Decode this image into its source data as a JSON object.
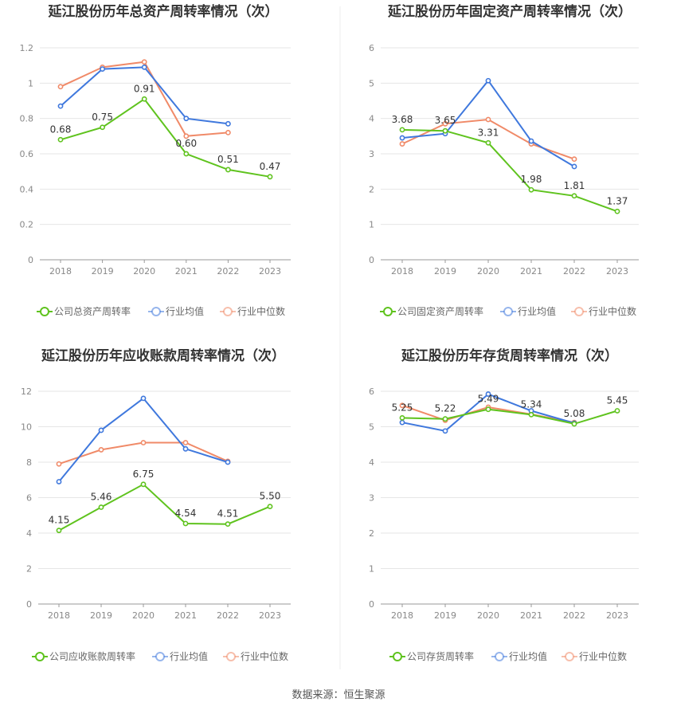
{
  "colors": {
    "company": "#5fc31e",
    "industry_avg": "#3f78dd",
    "industry_median": "#f08a68",
    "grid": "#e6e6e6",
    "axis": "#999999",
    "divider": "#eeeeee"
  },
  "source": "数据来源：恒生聚源",
  "chart_data": [
    {
      "type": "line",
      "title": "延江股份历年总资产周转率情况（次）",
      "categories": [
        "2018",
        "2019",
        "2020",
        "2021",
        "2022",
        "2023"
      ],
      "ylim": [
        0,
        1.2
      ],
      "yticks": [
        "0",
        "0.2",
        "0.4",
        "0.6",
        "0.8",
        "1",
        "1.2"
      ],
      "grid": true,
      "legend_position": "bottom",
      "series": [
        {
          "name": "公司总资产周转率",
          "color_key": "company",
          "values": [
            0.68,
            0.75,
            0.91,
            0.6,
            0.51,
            0.47
          ],
          "labels": [
            "0.68",
            "0.75",
            "0.91",
            "0.60",
            "0.51",
            "0.47"
          ]
        },
        {
          "name": "行业均值",
          "color_key": "industry_avg",
          "values": [
            0.87,
            1.08,
            1.09,
            0.8,
            0.77,
            null
          ]
        },
        {
          "name": "行业中位数",
          "color_key": "industry_median",
          "values": [
            0.98,
            1.09,
            1.12,
            0.7,
            0.72,
            null
          ]
        }
      ]
    },
    {
      "type": "line",
      "title": "延江股份历年固定资产周转率情况（次）",
      "categories": [
        "2018",
        "2019",
        "2020",
        "2021",
        "2022",
        "2023"
      ],
      "ylim": [
        0,
        6
      ],
      "yticks": [
        "0",
        "1",
        "2",
        "3",
        "4",
        "5",
        "6"
      ],
      "grid": true,
      "legend_position": "bottom",
      "series": [
        {
          "name": "公司固定资产周转率",
          "color_key": "company",
          "values": [
            3.68,
            3.65,
            3.31,
            1.98,
            1.81,
            1.37
          ],
          "labels": [
            "3.68",
            "3.65",
            "3.31",
            "1.98",
            "1.81",
            "1.37"
          ]
        },
        {
          "name": "行业均值",
          "color_key": "industry_avg",
          "values": [
            3.45,
            3.57,
            5.07,
            3.36,
            2.64,
            null
          ]
        },
        {
          "name": "行业中位数",
          "color_key": "industry_median",
          "values": [
            3.28,
            3.85,
            3.97,
            3.28,
            2.85,
            null
          ]
        }
      ]
    },
    {
      "type": "line",
      "title": "延江股份历年应收账款周转率情况（次）",
      "categories": [
        "2018",
        "2019",
        "2020",
        "2021",
        "2022",
        "2023"
      ],
      "ylim": [
        0,
        12
      ],
      "yticks": [
        "0",
        "2",
        "4",
        "6",
        "8",
        "10",
        "12"
      ],
      "grid": true,
      "legend_position": "bottom",
      "series": [
        {
          "name": "公司应收账款周转率",
          "color_key": "company",
          "values": [
            4.15,
            5.46,
            6.75,
            4.54,
            4.51,
            5.5
          ],
          "labels": [
            "4.15",
            "5.46",
            "6.75",
            "4.54",
            "4.51",
            "5.50"
          ]
        },
        {
          "name": "行业均值",
          "color_key": "industry_avg",
          "values": [
            6.9,
            9.8,
            11.6,
            8.75,
            8.0,
            null
          ]
        },
        {
          "name": "行业中位数",
          "color_key": "industry_median",
          "values": [
            7.9,
            8.7,
            9.1,
            9.1,
            8.05,
            null
          ]
        }
      ]
    },
    {
      "type": "line",
      "title": "延江股份历年存货周转率情况（次）",
      "categories": [
        "2018",
        "2019",
        "2020",
        "2021",
        "2022",
        "2023"
      ],
      "ylim": [
        0,
        6
      ],
      "yticks": [
        "0",
        "1",
        "2",
        "3",
        "4",
        "5",
        "6"
      ],
      "grid": true,
      "legend_position": "bottom",
      "series": [
        {
          "name": "公司存货周转率",
          "color_key": "company",
          "values": [
            5.25,
            5.22,
            5.49,
            5.34,
            5.08,
            5.45
          ],
          "labels": [
            "5.25",
            "5.22",
            "5.49",
            "5.34",
            "5.08",
            "5.45"
          ]
        },
        {
          "name": "行业均值",
          "color_key": "industry_avg",
          "values": [
            5.12,
            4.88,
            5.92,
            5.45,
            5.1,
            null
          ]
        },
        {
          "name": "行业中位数",
          "color_key": "industry_median",
          "values": [
            5.6,
            5.18,
            5.55,
            5.35,
            5.12,
            null
          ]
        }
      ]
    }
  ]
}
